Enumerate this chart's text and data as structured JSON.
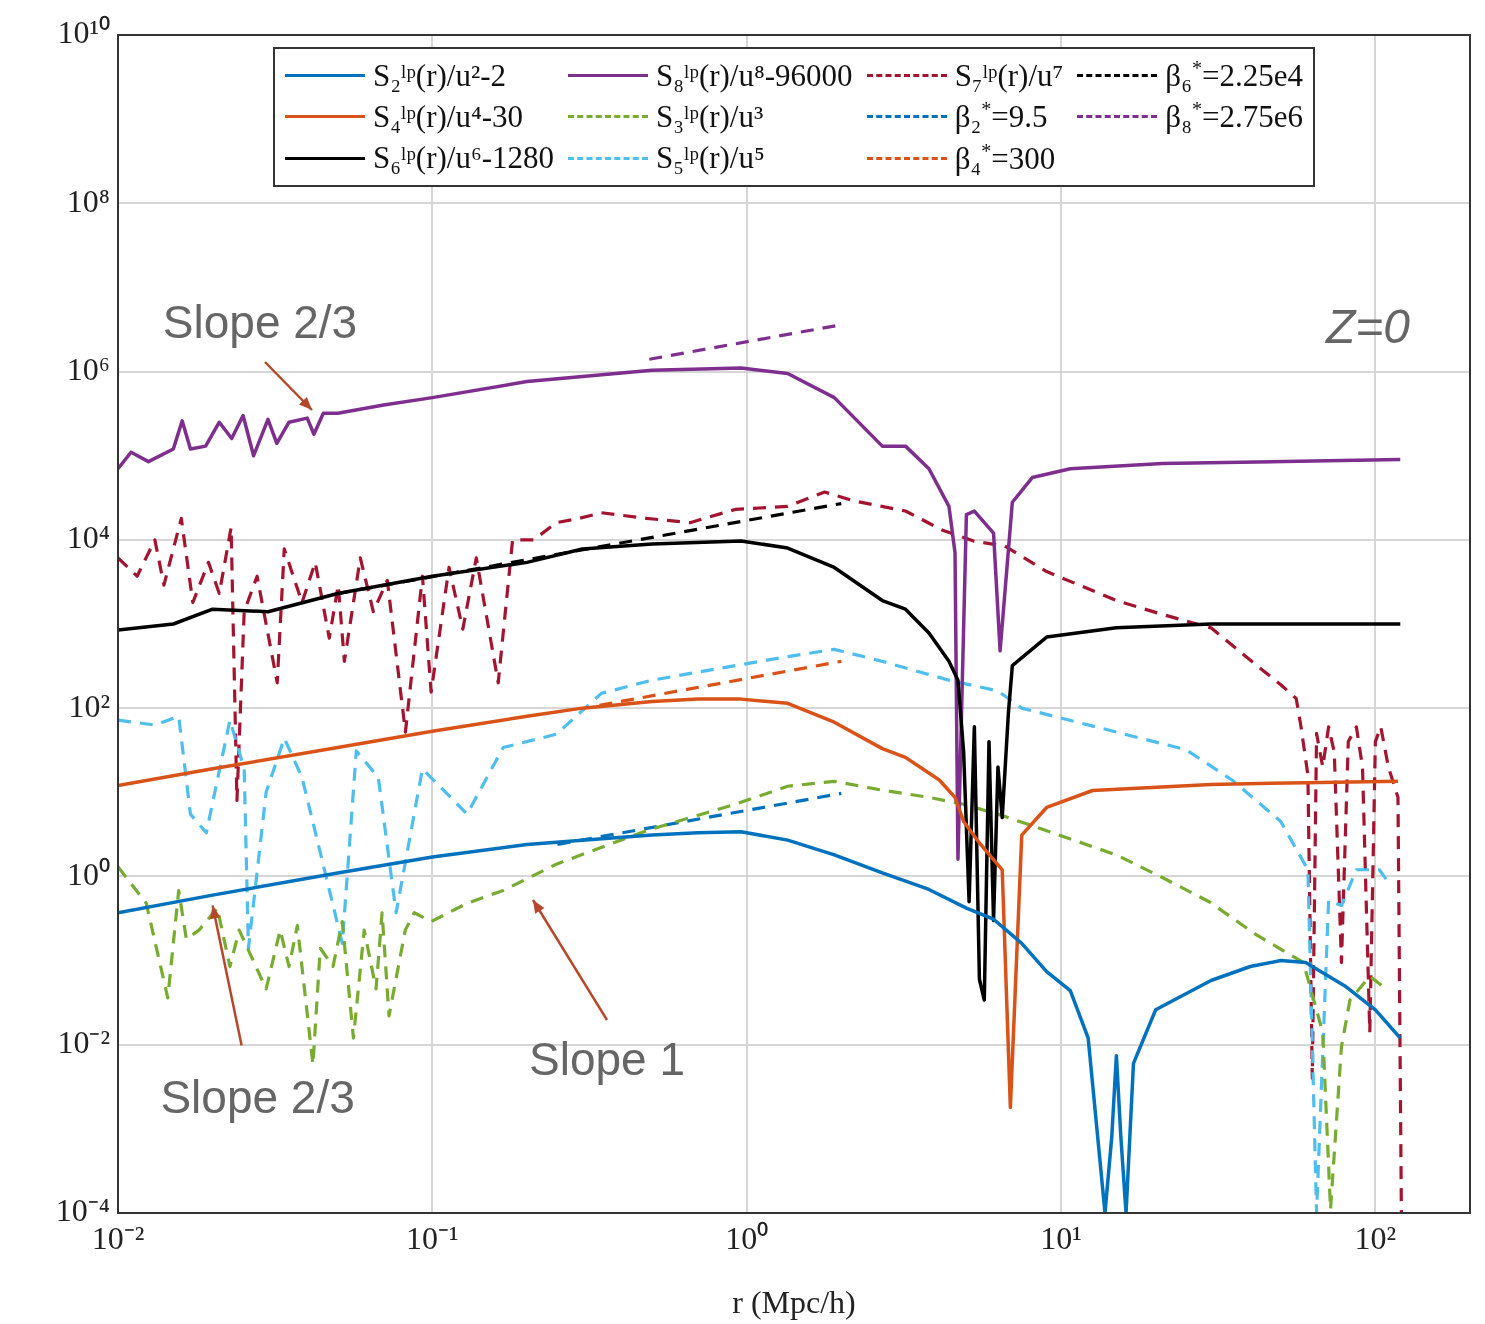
{
  "chart_data": {
    "type": "line",
    "xlabel": "r (Mpc/h)",
    "log": "xy",
    "grid": true,
    "legend": "top",
    "marker": "none",
    "xlim": [
      0.01,
      200
    ],
    "ylim": [
      0.0001,
      10000000000
    ],
    "xticks": [
      {
        "value": 0.01,
        "label": "10⁻²"
      },
      {
        "value": 0.1,
        "label": "10⁻¹"
      },
      {
        "value": 1,
        "label": "10⁰"
      },
      {
        "value": 10,
        "label": "10¹"
      },
      {
        "value": 100,
        "label": "10²"
      }
    ],
    "yticks": [
      {
        "value": 0.0001,
        "label": "10⁻⁴"
      },
      {
        "value": 0.01,
        "label": "10⁻²"
      },
      {
        "value": 1,
        "label": "10⁰"
      },
      {
        "value": 100,
        "label": "10²"
      },
      {
        "value": 10000,
        "label": "10⁴"
      },
      {
        "value": 1000000,
        "label": "10⁶"
      },
      {
        "value": 100000000,
        "label": "10⁸"
      },
      {
        "value": 10000000000,
        "label": "10¹⁰"
      }
    ],
    "annotations": [
      "Slope 2/3",
      {
        "text": "Slope 2/3",
        "x": 0.02,
        "y": 0.45
      },
      "Slope 1",
      "Z=0"
    ],
    "series": [
      {
        "name": "S₂ˡᵖ(r)/u²-2",
        "color": "#0072bd",
        "line_style": "solid",
        "x": [
          0.01,
          0.02,
          0.05,
          0.1,
          0.2,
          0.3,
          0.5,
          0.7,
          0.96,
          1.35,
          1.9,
          2.7,
          3.8,
          5,
          6.1,
          7.5,
          9,
          10.7,
          12.2,
          13.8,
          14.5,
          15,
          15.5,
          16.1,
          17,
          20,
          30,
          40,
          50,
          60,
          80,
          100,
          120
        ],
        "values": [
          0.37,
          0.6,
          1.1,
          1.7,
          2.4,
          2.7,
          3.1,
          3.3,
          3.4,
          2.7,
          1.8,
          1.1,
          0.7,
          0.42,
          0.31,
          0.16,
          0.074,
          0.044,
          0.012,
          0.0001,
          0.0008,
          0.0074,
          0.0008,
          0.0001,
          0.006,
          0.026,
          0.058,
          0.085,
          0.1,
          0.095,
          0.05,
          0.026,
          0.012
        ]
      },
      {
        "name": "S₄ˡᵖ(r)/u⁴-30",
        "color": "#d95319",
        "line_style": "solid",
        "x": [
          0.01,
          0.02,
          0.05,
          0.1,
          0.2,
          0.3,
          0.5,
          0.7,
          0.96,
          1.35,
          1.9,
          2.7,
          3.2,
          4.1,
          4.6,
          4.9,
          5.5,
          6.5,
          6.9,
          7.5,
          9,
          12.6,
          30,
          60,
          118
        ],
        "values": [
          12,
          19,
          34,
          53,
          80,
          100,
          120,
          128,
          128,
          114,
          68,
          33,
          26,
          14,
          8.7,
          4.5,
          2.5,
          1.2,
          0.0018,
          3.1,
          6.6,
          10.5,
          12.4,
          13,
          13.5
        ]
      },
      {
        "name": "S₆ˡᵖ(r)/u⁶-1280",
        "color": "#000000",
        "line_style": "solid",
        "x": [
          0.01,
          0.015,
          0.02,
          0.03,
          0.05,
          0.1,
          0.2,
          0.3,
          0.5,
          0.96,
          1.35,
          1.9,
          2.7,
          3.2,
          3.8,
          4.4,
          4.7,
          4.9,
          5.1,
          5.3,
          5.5,
          5.7,
          5.9,
          6.1,
          6.3,
          6.5,
          6.8,
          7,
          9,
          15,
          30,
          120
        ],
        "values": [
          850,
          1000,
          1500,
          1400,
          2300,
          3700,
          5400,
          7800,
          8900,
          9700,
          8000,
          4700,
          1900,
          1500,
          780,
          360,
          215,
          30,
          0.5,
          60,
          0.06,
          0.034,
          40,
          0.3,
          20,
          5,
          87,
          320,
          700,
          900,
          1000,
          1000
        ]
      },
      {
        "name": "S₈ˡᵖ(r)/u⁸-96000",
        "color": "#7e2f8e",
        "line_style": "solid",
        "x": [
          0.01,
          0.011,
          0.0125,
          0.015,
          0.016,
          0.017,
          0.019,
          0.021,
          0.023,
          0.025,
          0.027,
          0.03,
          0.032,
          0.035,
          0.04,
          0.042,
          0.045,
          0.05,
          0.07,
          0.1,
          0.2,
          0.5,
          0.96,
          1.35,
          1.9,
          2.7,
          3.2,
          3.8,
          4.4,
          4.6,
          4.7,
          5,
          5.3,
          6.1,
          6.4,
          7,
          8.1,
          10.7,
          21,
          120
        ],
        "values": [
          70000,
          110000,
          85000,
          120000,
          260000,
          120000,
          130000,
          250000,
          160000,
          300000,
          100000,
          270000,
          140000,
          250000,
          280000,
          180000,
          320000,
          320000,
          400000,
          490000,
          760000,
          1040000,
          1100000,
          950000,
          490000,
          130000,
          130000,
          70000,
          25000,
          7000,
          1.6,
          20000,
          22000,
          12000,
          480,
          28000,
          55000,
          70000,
          81000,
          90000
        ]
      },
      {
        "name": "S₃ˡᵖ(r)/u³",
        "color": "#77ac30",
        "line_style": "dashed",
        "x": [
          0.01,
          0.0123,
          0.0144,
          0.0156,
          0.0165,
          0.0181,
          0.0207,
          0.0227,
          0.0243,
          0.0296,
          0.0328,
          0.035,
          0.0372,
          0.0417,
          0.044,
          0.0483,
          0.0517,
          0.0561,
          0.0607,
          0.0662,
          0.0692,
          0.0728,
          0.082,
          0.0876,
          0.0991,
          0.129,
          0.168,
          0.248,
          0.48,
          0.92,
          1.35,
          1.9,
          2.7,
          3.8,
          4.9,
          6.3,
          9,
          15,
          21,
          29.6,
          42,
          59,
          68,
          72,
          78,
          83,
          96,
          110
        ],
        "values": [
          1.3,
          0.48,
          0.036,
          0.68,
          0.18,
          0.23,
          0.42,
          0.085,
          0.23,
          0.046,
          0.23,
          0.085,
          0.26,
          0.0058,
          0.14,
          0.085,
          0.29,
          0.012,
          0.23,
          0.046,
          0.37,
          0.022,
          0.23,
          0.37,
          0.29,
          0.48,
          0.68,
          1.4,
          3.5,
          7.2,
          11.8,
          13.5,
          10.6,
          8.7,
          7.2,
          5.5,
          3.5,
          1.8,
          0.97,
          0.5,
          0.2,
          0.095,
          0.014,
          0.00011,
          0.0095,
          0.034,
          0.065,
          0.044
        ]
      },
      {
        "name": "S₅ˡᵖ(r)/u⁵",
        "color": "#4dbeee",
        "line_style": "dashed",
        "x": [
          0.01,
          0.0131,
          0.0156,
          0.017,
          0.0191,
          0.0227,
          0.0252,
          0.026,
          0.0296,
          0.0338,
          0.0385,
          0.0517,
          0.0573,
          0.0673,
          0.0767,
          0.093,
          0.129,
          0.168,
          0.248,
          0.345,
          0.5,
          0.92,
          1.35,
          1.9,
          2.7,
          4.4,
          6.3,
          7.5,
          15,
          25,
          35,
          50,
          61,
          65,
          71,
          78,
          87,
          103,
          110
        ],
        "values": [
          72,
          63,
          80,
          5.5,
          3.3,
          72,
          19,
          0.14,
          10,
          44,
          15,
          0.16,
          31,
          15,
          0.37,
          19,
          5.5,
          34,
          49,
          150,
          215,
          320,
          410,
          500,
          360,
          215,
          160,
          100,
          52,
          32,
          14,
          4.5,
          1.2,
          0.0001,
          0.52,
          0.45,
          1.2,
          1.2,
          0.85
        ]
      },
      {
        "name": "S₇ˡᵖ(r)/u⁷",
        "color": "#a2142f",
        "line_style": "dashed",
        "x": [
          0.01,
          0.0115,
          0.0131,
          0.014,
          0.0159,
          0.0173,
          0.0194,
          0.021,
          0.0229,
          0.0239,
          0.0252,
          0.0277,
          0.0321,
          0.0338,
          0.0385,
          0.0424,
          0.047,
          0.0502,
          0.0525,
          0.059,
          0.0649,
          0.0719,
          0.0821,
          0.093,
          0.0991,
          0.113,
          0.125,
          0.138,
          0.162,
          0.18,
          0.21,
          0.248,
          0.293,
          0.345,
          0.48,
          0.66,
          0.92,
          1.35,
          1.77,
          2.2,
          3.2,
          4.2,
          5.3,
          6.6,
          9,
          15,
          21,
          30,
          42,
          50,
          56,
          58,
          61,
          63,
          65,
          68,
          71,
          74,
          78,
          82,
          87,
          91,
          96,
          100,
          104,
          110,
          118,
          121
        ],
        "values": [
          6100,
          3700,
          10000,
          2900,
          18000,
          1800,
          5400,
          2300,
          14000,
          8,
          1400,
          3700,
          200,
          7800,
          1800,
          5400,
          680,
          2900,
          360,
          6100,
          1400,
          3300,
          52,
          3700,
          155,
          4700,
          870,
          6100,
          200,
          10000,
          10000,
          16000,
          18000,
          21000,
          18000,
          16000,
          23000,
          25000,
          37000,
          29000,
          22000,
          13000,
          9600,
          8500,
          4200,
          1900,
          1300,
          900,
          320,
          190,
          130,
          60,
          16,
          0.004,
          50,
          20,
          60,
          30,
          0.095,
          40,
          60,
          20,
          0.014,
          40,
          60,
          20,
          8.7,
          0.0001
        ]
      },
      {
        "name": "β₂$^{*}$=9.5",
        "color": "#0072bd",
        "line_style": "dashed",
        "x": [
          0.25,
          2
        ],
        "values": [
          2.4,
          9.7
        ]
      },
      {
        "name": "β₄$^{*}$=300",
        "color": "#d95319",
        "line_style": "dashed",
        "x": [
          0.34,
          2
        ],
        "values": [
          108,
          360
        ]
      },
      {
        "name": "β₆$^{*}$=2.25e4",
        "color": "#000000",
        "line_style": "dashed",
        "x": [
          0.05,
          2
        ],
        "values": [
          2300,
          27000
        ]
      },
      {
        "name": "β₈$^{*}$=2.75e6",
        "color": "#7e2f8e",
        "line_style": "dashed",
        "x": [
          0.49,
          2
        ],
        "values": [
          1400000,
          3600000
        ]
      }
    ]
  }
}
